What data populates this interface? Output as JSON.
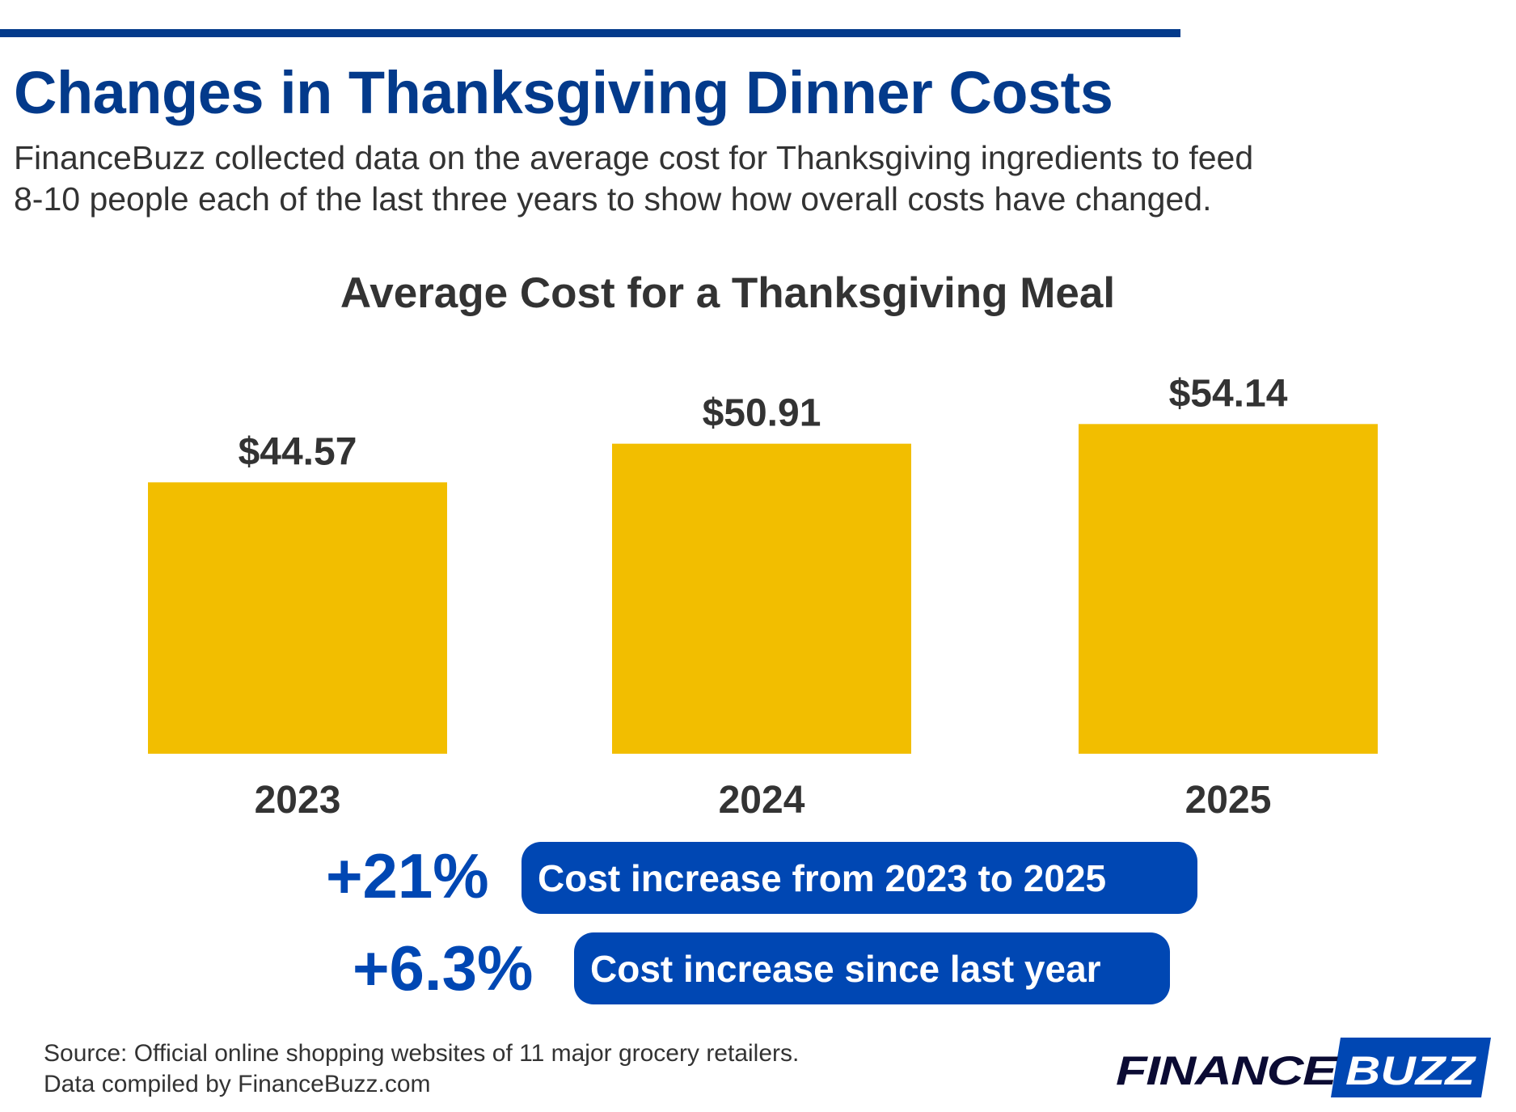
{
  "header": {
    "title": "Changes in Thanksgiving Dinner Costs",
    "subtitle_line1": "FinanceBuzz collected data on the average cost for Thanksgiving ingredients to feed",
    "subtitle_line2": "8-10 people each of the last three years to show how overall costs have changed."
  },
  "chart_data": {
    "type": "bar",
    "title": "Average Cost for a Thanksgiving Meal",
    "categories": [
      "2023",
      "2024",
      "2025"
    ],
    "values": [
      44.57,
      50.91,
      54.14
    ],
    "data_labels": [
      "$44.57",
      "$50.91",
      "$54.14"
    ],
    "xlabel": "",
    "ylabel": "",
    "ylim": [
      0,
      60
    ],
    "grid": false,
    "bar_color": "#f2be00"
  },
  "stats": [
    {
      "value": "+21%",
      "label": "Cost increase from 2023 to 2025"
    },
    {
      "value": "+6.3%",
      "label": "Cost increase since last year"
    }
  ],
  "footer": {
    "source_line1": "Source: Official online shopping websites of 11 major grocery retailers.",
    "source_line2": "Data compiled by FinanceBuzz.com",
    "logo_part1": "FINANCE",
    "logo_part2": "BUZZ"
  },
  "colors": {
    "title": "#033a8b",
    "accent": "#0047b3",
    "bar": "#f2be00",
    "logo_dark": "#0b0b33"
  }
}
